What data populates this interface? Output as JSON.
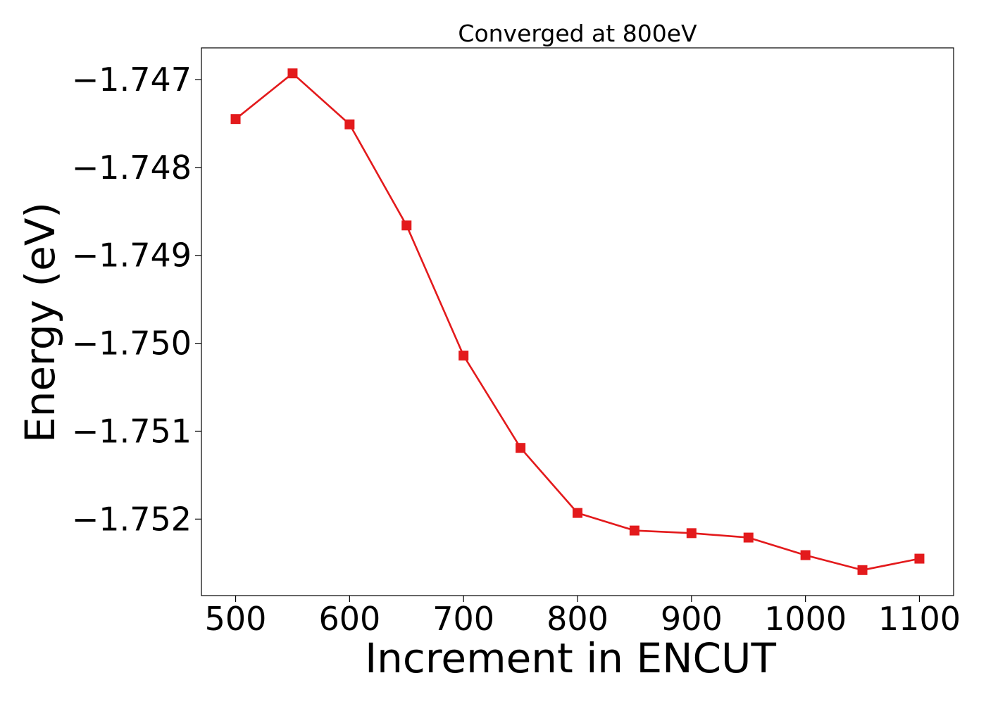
{
  "chart_data": {
    "type": "line",
    "title": "Converged at 800eV",
    "xlabel": "Increment in ENCUT",
    "ylabel": "Energy (eV)",
    "xlim": [
      470,
      1130
    ],
    "ylim": [
      -1.75287,
      -1.74664
    ],
    "x_ticks": [
      500,
      600,
      700,
      800,
      900,
      1000,
      1100
    ],
    "x_tick_labels": [
      "500",
      "600",
      "700",
      "800",
      "900",
      "1000",
      "1100"
    ],
    "y_ticks": [
      -1.747,
      -1.748,
      -1.749,
      -1.75,
      -1.751,
      -1.752
    ],
    "y_tick_labels": [
      "−1.747",
      "−1.748",
      "−1.749",
      "−1.750",
      "−1.751",
      "−1.752"
    ],
    "grid": false,
    "series": [
      {
        "color": "#e31a1c",
        "marker": "square",
        "x": [
          500,
          550,
          600,
          650,
          700,
          750,
          800,
          850,
          900,
          950,
          1000,
          1050,
          1100
        ],
        "y": [
          -1.74745,
          -1.74693,
          -1.74751,
          -1.74866,
          -1.75014,
          -1.75119,
          -1.75193,
          -1.75213,
          -1.75216,
          -1.75221,
          -1.75241,
          -1.75258,
          -1.75245
        ]
      }
    ]
  }
}
